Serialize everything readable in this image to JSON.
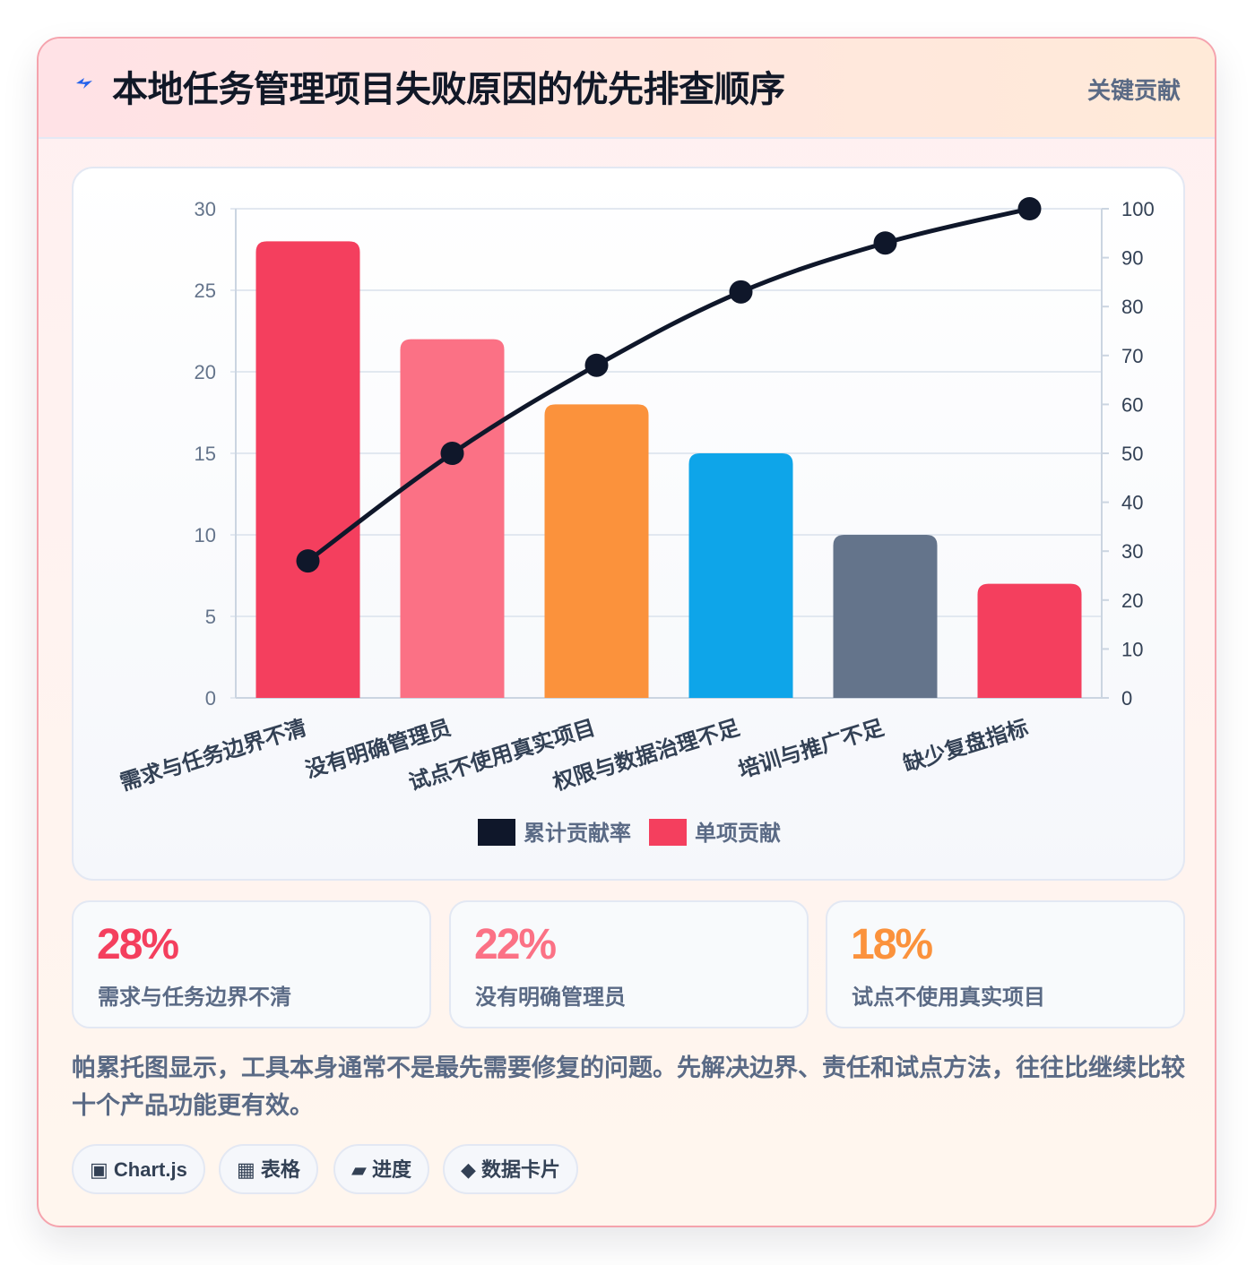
{
  "header": {
    "title": "本地任务管理项目失败原因的优先排查顺序",
    "tag": "关键贡献"
  },
  "chart_data": {
    "type": "bar",
    "categories": [
      "需求与任务边界不清",
      "没有明确管理员",
      "试点不使用真实项目",
      "权限与数据治理不足",
      "培训与推广不足",
      "缺少复盘指标"
    ],
    "series": [
      {
        "name": "累计贡献率",
        "type": "line",
        "axis": "right",
        "color": "#0f172a",
        "values": [
          28,
          50,
          68,
          83,
          93,
          100
        ]
      },
      {
        "name": "单项贡献",
        "type": "bar",
        "axis": "left",
        "color": "#f43f5e",
        "values": [
          28,
          22,
          18,
          15,
          10,
          7
        ]
      }
    ],
    "bar_colors": [
      "#f43f5e",
      "#fb7185",
      "#fb923c",
      "#0ea5e9",
      "#64748b",
      "#f43f5e"
    ],
    "y_left": {
      "min": 0,
      "max": 30,
      "ticks": [
        "0",
        "5",
        "10",
        "15",
        "20",
        "25",
        "30"
      ]
    },
    "y_right": {
      "min": 0,
      "max": 100,
      "ticks": [
        "0",
        "10",
        "20",
        "30",
        "40",
        "50",
        "60",
        "70",
        "80",
        "90",
        "100"
      ]
    },
    "grid": true,
    "legend_position": "bottom"
  },
  "stats": [
    {
      "value": "28%",
      "label": "需求与任务边界不清",
      "color": "#f43f5e"
    },
    {
      "value": "22%",
      "label": "没有明确管理员",
      "color": "#fb7185"
    },
    {
      "value": "18%",
      "label": "试点不使用真实项目",
      "color": "#fb923c"
    }
  ],
  "description": "帕累托图显示，工具本身通常不是最先需要修复的问题。先解决边界、责任和试点方法，往往比继续比较十个产品功能更有效。",
  "chips": [
    {
      "icon": "▣",
      "label": "Chart.js",
      "icon_name": "chart-icon"
    },
    {
      "icon": "▦",
      "label": "表格",
      "icon_name": "table-icon"
    },
    {
      "icon": "▰",
      "label": "进度",
      "icon_name": "progress-icon"
    },
    {
      "icon": "◆",
      "label": "数据卡片",
      "icon_name": "diamond-icon"
    }
  ],
  "icons": {
    "title_icon": "lightning-bolt-icon",
    "title_icon_color": "#2563eb"
  }
}
